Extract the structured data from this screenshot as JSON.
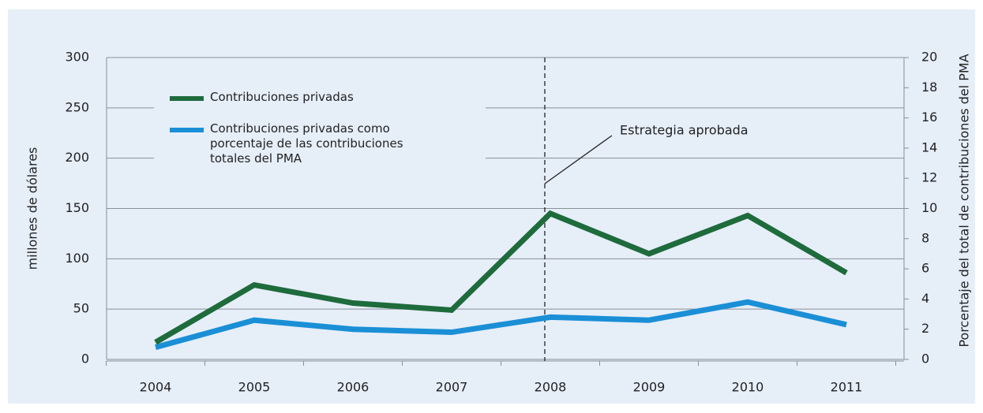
{
  "chart_data": {
    "type": "line",
    "categories": [
      "2004",
      "2005",
      "2006",
      "2007",
      "2008",
      "2009",
      "2010",
      "2011"
    ],
    "series": [
      {
        "name": "Contribuciones privadas",
        "color": "#1e6b3c",
        "values": [
          17,
          74,
          56,
          49,
          145,
          105,
          143,
          86
        ]
      },
      {
        "name": "Contribuciones privadas como porcentaje de las contribuciones totales del PMA",
        "color": "#1a8fd6",
        "axis": "y2",
        "values": [
          0.8,
          2.6,
          2.0,
          1.8,
          2.8,
          2.6,
          3.8,
          2.3
        ]
      }
    ],
    "ylabel": "millones de dólares",
    "y2label": "Porcentaje del total de contribuciones del PMA",
    "ylim": [
      0,
      300
    ],
    "yticks": [
      0,
      50,
      100,
      150,
      200,
      250,
      300
    ],
    "y2lim": [
      0,
      20
    ],
    "y2ticks": [
      0,
      2,
      4,
      6,
      8,
      10,
      12,
      14,
      16,
      18,
      20
    ],
    "annotation": "Estrategia aprobada",
    "grid": true
  }
}
